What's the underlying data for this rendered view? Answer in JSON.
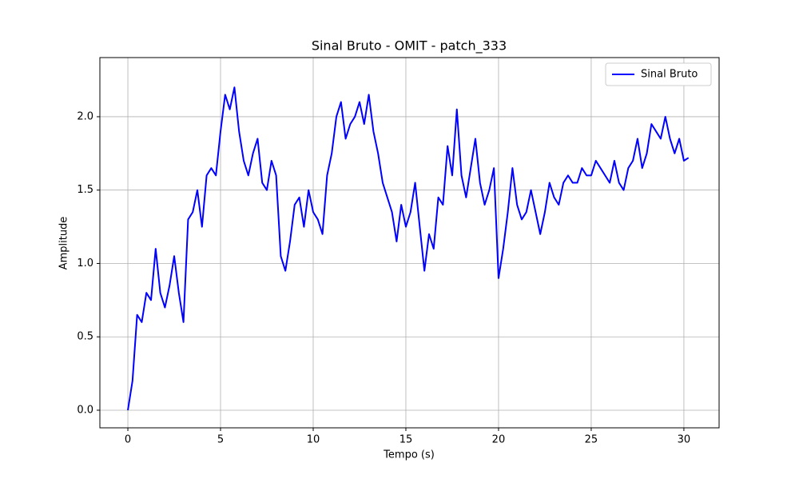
{
  "chart_data": {
    "type": "line",
    "title": "Sinal Bruto - OMIT - patch_333",
    "x_label": "Tempo (s)",
    "y_label": "Amplitude",
    "x": [
      0,
      0.25,
      0.5,
      0.75,
      1,
      1.25,
      1.5,
      1.75,
      2,
      2.25,
      2.5,
      2.75,
      3,
      3.25,
      3.5,
      3.75,
      4,
      4.25,
      4.5,
      4.75,
      5,
      5.25,
      5.5,
      5.75,
      6,
      6.25,
      6.5,
      6.75,
      7,
      7.25,
      7.5,
      7.75,
      8,
      8.25,
      8.5,
      8.75,
      9,
      9.25,
      9.5,
      9.75,
      10,
      10.25,
      10.5,
      10.75,
      11,
      11.25,
      11.5,
      11.75,
      12,
      12.25,
      12.5,
      12.75,
      13,
      13.25,
      13.5,
      13.75,
      14,
      14.25,
      14.5,
      14.75,
      15,
      15.25,
      15.5,
      15.75,
      16,
      16.25,
      16.5,
      16.75,
      17,
      17.25,
      17.5,
      17.75,
      18,
      18.25,
      18.5,
      18.75,
      19,
      19.25,
      19.5,
      19.75,
      20,
      20.25,
      20.5,
      20.75,
      21,
      21.25,
      21.5,
      21.75,
      22,
      22.25,
      22.5,
      22.75,
      23,
      23.25,
      23.5,
      23.75,
      24,
      24.25,
      24.5,
      24.75,
      25,
      25.25,
      25.5,
      25.75,
      26,
      26.25,
      26.5,
      26.75,
      27,
      27.25,
      27.5,
      27.75,
      28,
      28.25,
      28.5,
      28.75,
      29,
      29.25,
      29.5,
      29.75,
      30,
      30.25
    ],
    "series": [
      {
        "name": "Sinal Bruto",
        "color": "#0000ff",
        "values": [
          0,
          0.2,
          0.65,
          0.6,
          0.8,
          0.75,
          1.1,
          0.8,
          0.7,
          0.85,
          1.05,
          0.8,
          0.6,
          1.3,
          1.35,
          1.5,
          1.25,
          1.6,
          1.65,
          1.6,
          1.9,
          2.15,
          2.05,
          2.2,
          1.9,
          1.7,
          1.6,
          1.75,
          1.85,
          1.55,
          1.5,
          1.7,
          1.6,
          1.05,
          0.95,
          1.15,
          1.4,
          1.45,
          1.25,
          1.5,
          1.35,
          1.3,
          1.2,
          1.6,
          1.75,
          2.0,
          2.1,
          1.85,
          1.95,
          2.0,
          2.1,
          1.95,
          2.15,
          1.9,
          1.75,
          1.55,
          1.45,
          1.35,
          1.15,
          1.4,
          1.25,
          1.35,
          1.55,
          1.25,
          0.95,
          1.2,
          1.1,
          1.45,
          1.4,
          1.8,
          1.6,
          2.05,
          1.6,
          1.45,
          1.65,
          1.85,
          1.55,
          1.4,
          1.5,
          1.65,
          0.9,
          1.1,
          1.35,
          1.65,
          1.4,
          1.3,
          1.35,
          1.5,
          1.35,
          1.2,
          1.35,
          1.55,
          1.45,
          1.4,
          1.55,
          1.6,
          1.55,
          1.55,
          1.65,
          1.6,
          1.6,
          1.7,
          1.65,
          1.6,
          1.55,
          1.7,
          1.55,
          1.5,
          1.65,
          1.7,
          1.85,
          1.65,
          1.75,
          1.95,
          1.9,
          1.85,
          2.0,
          1.85,
          1.75,
          1.85,
          1.7,
          1.72
        ]
      }
    ],
    "xlim": [
      -1.51,
      31.9
    ],
    "ylim": [
      -0.12,
      2.403
    ],
    "xticks": [
      0,
      5,
      10,
      15,
      20,
      25,
      30
    ],
    "yticks": [
      {
        "value": 0,
        "label": "0.0"
      },
      0.5,
      {
        "value": 1,
        "label": "1.0"
      },
      1.5,
      {
        "value": 2,
        "label": "2.0"
      }
    ],
    "grid": true,
    "legend": "upper right"
  }
}
